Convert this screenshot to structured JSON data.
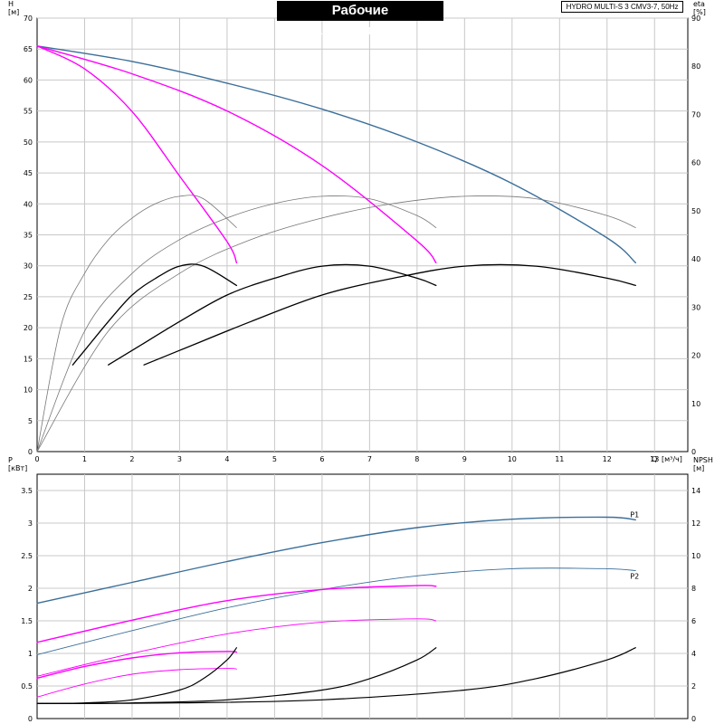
{
  "title": "Рабочие характеристики",
  "model": "HYDRO MULTI-S 3 CMV3-7, 50Hz",
  "colors": {
    "blue": "#3b6f9a",
    "magenta": "#ff00ff",
    "black": "#000000",
    "gray": "#777777",
    "grid": "#c8c8c8"
  },
  "chart_data": [
    {
      "type": "line",
      "ylabel": "H",
      "yunit": "[м]",
      "y2label": "eta",
      "y2unit": "[%]",
      "xlabel": "Q",
      "xunit": "[м³/ч]",
      "xlim": [
        0,
        13.7
      ],
      "ylim": [
        0,
        70
      ],
      "y2lim": [
        0,
        90
      ],
      "xticks": [
        0,
        1,
        2,
        3,
        4,
        5,
        6,
        7,
        8,
        9,
        10,
        11,
        12,
        13
      ],
      "yticks": [
        0,
        5,
        10,
        15,
        20,
        25,
        30,
        35,
        40,
        45,
        50,
        55,
        60,
        65,
        70
      ],
      "y2ticks": [
        0,
        10,
        20,
        30,
        40,
        50,
        60,
        70,
        80,
        90
      ],
      "grid": true,
      "series": [
        {
          "axis": "y",
          "color": "#3b6f9a",
          "width": 1.4,
          "x": [
            0,
            2,
            4,
            6,
            8,
            10,
            12,
            12.6
          ],
          "y": [
            65.5,
            63,
            59.5,
            55.3,
            50,
            43.3,
            34.5,
            30.5
          ]
        },
        {
          "axis": "y",
          "color": "#ff00ff",
          "width": 1.4,
          "x": [
            0,
            2,
            4,
            6,
            8,
            8.4
          ],
          "y": [
            65.5,
            61,
            55,
            46.2,
            34,
            30.5
          ]
        },
        {
          "axis": "y",
          "color": "#ff00ff",
          "width": 1.4,
          "x": [
            0,
            1,
            2,
            3,
            4,
            4.2
          ],
          "y": [
            65.5,
            61.8,
            54.9,
            44.5,
            33.9,
            30.5
          ]
        },
        {
          "axis": "y2",
          "color": "#777777",
          "width": 0.8,
          "x": [
            0,
            0.5,
            1,
            1.5,
            2,
            2.5,
            3,
            3.5,
            4.2
          ],
          "y": [
            0,
            26,
            37,
            44,
            48.5,
            51.5,
            53,
            52.5,
            46.5
          ]
        },
        {
          "axis": "y2",
          "color": "#777777",
          "width": 0.8,
          "x": [
            0,
            1,
            2,
            3,
            4,
            5,
            6,
            7,
            8,
            8.4
          ],
          "y": [
            0,
            25,
            37,
            44,
            48.5,
            51.5,
            53,
            52.5,
            49,
            46.5
          ]
        },
        {
          "axis": "y2",
          "color": "#777777",
          "width": 0.8,
          "x": [
            0,
            1.5,
            3,
            4.5,
            6,
            7.5,
            9,
            10.5,
            12,
            12.6
          ],
          "y": [
            0,
            25,
            37,
            44,
            48.5,
            51.5,
            53,
            52.5,
            49,
            46.5
          ]
        },
        {
          "axis": "y2",
          "color": "#000000",
          "width": 1.3,
          "x": [
            0.75,
            1,
            1.5,
            2,
            2.5,
            3,
            3.5,
            4.2
          ],
          "y": [
            18,
            21,
            27,
            32.5,
            36,
            38.5,
            38.5,
            34.5
          ]
        },
        {
          "axis": "y2",
          "color": "#000000",
          "width": 1.3,
          "x": [
            1.5,
            2,
            3,
            4,
            5,
            6,
            7,
            8,
            8.4
          ],
          "y": [
            18,
            21,
            27,
            32.5,
            36,
            38.5,
            38.5,
            36,
            34.5
          ]
        },
        {
          "axis": "y2",
          "color": "#000000",
          "width": 1.3,
          "x": [
            2.25,
            3,
            4.5,
            6,
            7.5,
            9,
            10.5,
            12,
            12.6
          ],
          "y": [
            18,
            21,
            27,
            32.5,
            36,
            38.5,
            38.5,
            36,
            34.5
          ]
        }
      ]
    },
    {
      "type": "line",
      "ylabel": "P",
      "yunit": "[кВт]",
      "y2label": "NPSH",
      "y2unit": "[м]",
      "xlim": [
        0,
        13.7
      ],
      "ylim": [
        0,
        3.75
      ],
      "y2lim": [
        0,
        15
      ],
      "xticks": [
        0,
        1,
        2,
        3,
        4,
        5,
        6,
        7,
        8,
        9,
        10,
        11,
        12,
        13
      ],
      "yticks": [
        0,
        0.5,
        1.0,
        1.5,
        2.0,
        2.5,
        3.0,
        3.5
      ],
      "y2ticks": [
        0,
        2,
        4,
        6,
        8,
        10,
        12,
        14
      ],
      "grid": true,
      "series_labels": [
        "P1",
        "P2"
      ],
      "series": [
        {
          "axis": "y",
          "label": "P1",
          "color": "#3b6f9a",
          "width": 1.4,
          "x": [
            0,
            2,
            4,
            6,
            8,
            10,
            12,
            12.6
          ],
          "y": [
            1.77,
            2.09,
            2.41,
            2.7,
            2.93,
            3.06,
            3.09,
            3.05
          ]
        },
        {
          "axis": "y",
          "label": "P2",
          "color": "#3b6f9a",
          "width": 0.9,
          "x": [
            0,
            2,
            4,
            6,
            8,
            10,
            12,
            12.6
          ],
          "y": [
            0.98,
            1.35,
            1.7,
            1.98,
            2.19,
            2.3,
            2.3,
            2.27
          ]
        },
        {
          "axis": "y",
          "color": "#ff00ff",
          "width": 1.4,
          "x": [
            0,
            2,
            4,
            6,
            8,
            8.4
          ],
          "y": [
            1.17,
            1.51,
            1.81,
            1.98,
            2.04,
            2.03
          ]
        },
        {
          "axis": "y",
          "color": "#ff00ff",
          "width": 0.9,
          "x": [
            0,
            2,
            4,
            6,
            8,
            8.4
          ],
          "y": [
            0.65,
            1.0,
            1.3,
            1.48,
            1.53,
            1.5
          ]
        },
        {
          "axis": "y",
          "color": "#ff00ff",
          "width": 1.4,
          "x": [
            0,
            1,
            2,
            3,
            4,
            4.2
          ],
          "y": [
            0.62,
            0.8,
            0.93,
            1.01,
            1.03,
            1.02
          ]
        },
        {
          "axis": "y",
          "color": "#ff00ff",
          "width": 0.9,
          "x": [
            0,
            1,
            2,
            3,
            4,
            4.2
          ],
          "y": [
            0.33,
            0.53,
            0.68,
            0.75,
            0.77,
            0.76
          ]
        },
        {
          "axis": "y2",
          "color": "#000000",
          "width": 1.2,
          "x": [
            0,
            1,
            2,
            3,
            3.5,
            4,
            4.2
          ],
          "y": [
            0.92,
            0.96,
            1.15,
            1.75,
            2.45,
            3.6,
            4.35
          ]
        },
        {
          "axis": "y2",
          "color": "#000000",
          "width": 1.2,
          "x": [
            0,
            2,
            4,
            6,
            7,
            8,
            8.4
          ],
          "y": [
            0.92,
            0.96,
            1.15,
            1.75,
            2.45,
            3.6,
            4.35
          ]
        },
        {
          "axis": "y2",
          "color": "#000000",
          "width": 1.2,
          "x": [
            0,
            3,
            6,
            9,
            10.5,
            12,
            12.6
          ],
          "y": [
            0.92,
            0.96,
            1.15,
            1.75,
            2.45,
            3.6,
            4.35
          ]
        }
      ]
    }
  ]
}
